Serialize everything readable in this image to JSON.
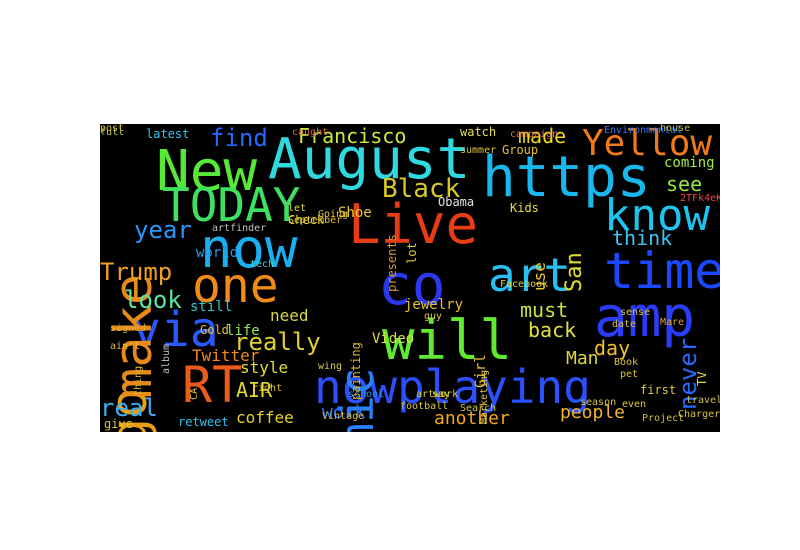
{
  "background_color": "#000000",
  "figure_background": "#ffffff",
  "colormap": "jet",
  "words": [
    {
      "text": "nowplaying",
      "color": "#2a50ff"
    },
    {
      "text": "https",
      "color": "#18b8ee"
    },
    {
      "text": "August",
      "color": "#30d8e0"
    },
    {
      "text": "time",
      "color": "#1a48ff"
    },
    {
      "text": "New",
      "color": "#58e838"
    },
    {
      "text": "TODAY",
      "color": "#3ee060"
    },
    {
      "text": "now",
      "color": "#1ab0f0"
    },
    {
      "text": "Live",
      "color": "#e83c14"
    },
    {
      "text": "comic",
      "color": "#2a80ff"
    },
    {
      "text": "co",
      "color": "#2a38f0"
    },
    {
      "text": "will",
      "color": "#60ea30"
    },
    {
      "text": "amp",
      "color": "#2a3cf8"
    },
    {
      "text": "art",
      "color": "#28c0f0"
    },
    {
      "text": "one",
      "color": "#f08a18"
    },
    {
      "text": "via",
      "color": "#2858ff"
    },
    {
      "text": "RT",
      "color": "#ec5a1c"
    },
    {
      "text": "go",
      "color": "#e8a010"
    },
    {
      "text": "make",
      "color": "#e88a1a"
    },
    {
      "text": "know",
      "color": "#1cc4f0"
    },
    {
      "text": "Yellow",
      "color": "#f07a18"
    },
    {
      "text": "Black",
      "color": "#d8c824"
    },
    {
      "text": "Trump",
      "color": "#f0a020"
    },
    {
      "text": "year",
      "color": "#2898f8"
    },
    {
      "text": "look",
      "color": "#58e8a0"
    },
    {
      "text": "really",
      "color": "#e0d030"
    },
    {
      "text": "find",
      "color": "#2868ff"
    },
    {
      "text": "made",
      "color": "#f0d820"
    },
    {
      "text": "see",
      "color": "#9ae840"
    },
    {
      "text": "think",
      "color": "#38c8f0"
    },
    {
      "text": "San",
      "color": "#e0e030"
    },
    {
      "text": "Francisco",
      "color": "#c8ec40"
    },
    {
      "text": "back",
      "color": "#e0e048"
    },
    {
      "text": "must",
      "color": "#c8e040"
    },
    {
      "text": "day",
      "color": "#f0c030"
    },
    {
      "text": "Man",
      "color": "#e0d838"
    },
    {
      "text": "people",
      "color": "#f0b428"
    },
    {
      "text": "another",
      "color": "#f0a820"
    },
    {
      "text": "work",
      "color": "#2878ff"
    },
    {
      "text": "real",
      "color": "#3ab0f8"
    },
    {
      "text": "AIR",
      "color": "#e0d830"
    },
    {
      "text": "coffee",
      "color": "#e8d030"
    },
    {
      "text": "style",
      "color": "#e0e038"
    },
    {
      "text": "Twitter",
      "color": "#f08a20"
    },
    {
      "text": "never",
      "color": "#2868ff"
    },
    {
      "text": "need",
      "color": "#d8d840"
    },
    {
      "text": "life",
      "color": "#90e860"
    },
    {
      "text": "still",
      "color": "#30c8d8"
    },
    {
      "text": "world",
      "color": "#2898e8"
    },
    {
      "text": "jewelry",
      "color": "#e8c030"
    },
    {
      "text": "Shoe",
      "color": "#e8c838"
    },
    {
      "text": "Video",
      "color": "#d8e040"
    },
    {
      "text": "Girl",
      "color": "#e8c030"
    },
    {
      "text": "Obama",
      "color": "#e0e0e0"
    },
    {
      "text": "Kids",
      "color": "#e0e040"
    },
    {
      "text": "use",
      "color": "#e8c838"
    },
    {
      "text": "coming",
      "color": "#a0e848"
    },
    {
      "text": "watch",
      "color": "#e0e050"
    },
    {
      "text": "latest",
      "color": "#30c8f0"
    },
    {
      "text": "Group",
      "color": "#e8c030"
    },
    {
      "text": "Gold",
      "color": "#e8c030"
    },
    {
      "text": "artfinder",
      "color": "#c0c0c0"
    },
    {
      "text": "Check",
      "color": "#e0d838"
    },
    {
      "text": "let",
      "color": "#e0e040"
    },
    {
      "text": "lot",
      "color": "#e0c838"
    },
    {
      "text": "presents",
      "color": "#d89838"
    },
    {
      "text": "painting",
      "color": "#e0b030"
    },
    {
      "text": "guy",
      "color": "#d8c840"
    },
    {
      "text": "say",
      "color": "#e0e040"
    },
    {
      "text": "give",
      "color": "#e0c038"
    },
    {
      "text": "retweet",
      "color": "#30c0f0"
    },
    {
      "text": "school",
      "color": "#2898f0"
    },
    {
      "text": "artwork",
      "color": "#d8c840"
    },
    {
      "text": "first",
      "color": "#e0c840"
    },
    {
      "text": "even",
      "color": "#e0c838"
    },
    {
      "text": "date",
      "color": "#d8c038"
    },
    {
      "text": "TV",
      "color": "#d8d840"
    },
    {
      "text": "Marketing",
      "color": "#e0c840"
    },
    {
      "text": "Facebook",
      "color": "#e0d040"
    },
    {
      "text": "2TFk4eKj5b",
      "color": "#e84848"
    },
    {
      "text": "Going",
      "color": "#e8c838"
    },
    {
      "text": "CA",
      "color": "#e0c838"
    },
    {
      "text": "right",
      "color": "#e8c030"
    },
    {
      "text": "ain't",
      "color": "#e0c040"
    },
    {
      "text": "album",
      "color": "#c0c0c0"
    },
    {
      "text": "caught",
      "color": "#d07040"
    },
    {
      "text": "tech",
      "color": "#4ad0d0"
    },
    {
      "text": "wing",
      "color": "#d8d050"
    },
    {
      "text": "Book",
      "color": "#e0c040"
    },
    {
      "text": "pet",
      "color": "#d8c848"
    },
    {
      "text": "thing",
      "color": "#d8b838"
    },
    {
      "text": "campaign",
      "color": "#d07840"
    },
    {
      "text": "September",
      "color": "#e0c040"
    },
    {
      "text": "season",
      "color": "#d8c848"
    },
    {
      "text": "Mare",
      "color": "#e0a030"
    },
    {
      "text": "sense",
      "color": "#e0c040"
    },
    {
      "text": "Chargers",
      "color": "#d8c040"
    },
    {
      "text": "football",
      "color": "#d8c848"
    },
    {
      "text": "Vintage",
      "color": "#e0b038"
    },
    {
      "text": "full",
      "color": "#c8c840"
    },
    {
      "text": "Environmental",
      "color": "#2878ff"
    },
    {
      "text": "Project",
      "color": "#d0c040"
    },
    {
      "text": "travel",
      "color": "#c8c048"
    },
    {
      "text": "signed",
      "color": "#d8b040"
    },
    {
      "text": "house",
      "color": "#c8c040"
    },
    {
      "text": "summer",
      "color": "#d8c040"
    },
    {
      "text": "Search",
      "color": "#d0c848"
    },
    {
      "text": "post",
      "color": "#d0c040"
    }
  ]
}
